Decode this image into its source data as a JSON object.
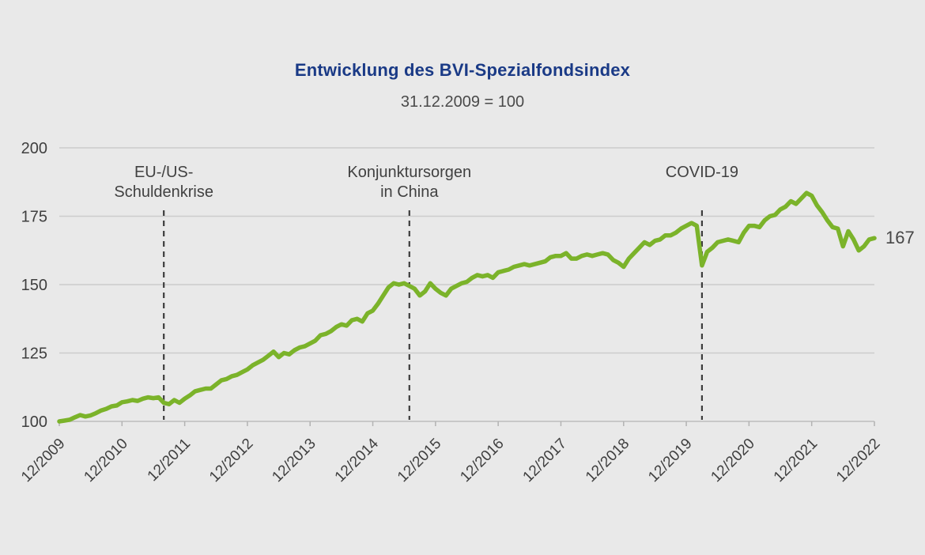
{
  "title": "Entwicklung des BVI-Spezialfondsindex",
  "subtitle": "31.12.2009 = 100",
  "annotations": [
    {
      "text_lines": [
        "EU-/US-",
        "Schuldenkrise"
      ],
      "event": "eu-us-debt-crisis",
      "month_index": 20
    },
    {
      "text_lines": [
        "Konjunktursorgen",
        "in China"
      ],
      "event": "china-economic-worries",
      "month_index": 67
    },
    {
      "text_lines": [
        "COVID-19"
      ],
      "event": "covid-19",
      "month_index": 123
    }
  ],
  "chart_data": {
    "type": "line",
    "title": "Entwicklung des BVI-Spezialfondsindex",
    "subtitle": "31.12.2009 = 100",
    "xlabel": "",
    "ylabel": "",
    "ylim": [
      100,
      200
    ],
    "y_ticks": [
      100,
      125,
      150,
      175,
      200
    ],
    "x_tick_labels": [
      "12/2009",
      "12/2010",
      "12/2011",
      "12/2012",
      "12/2013",
      "12/2014",
      "12/2015",
      "12/2016",
      "12/2017",
      "12/2018",
      "12/2019",
      "12/2020",
      "12/2021",
      "12/2022"
    ],
    "grid": "horizontal",
    "legend": "none",
    "end_label": "167",
    "series": [
      {
        "name": "BVI-Spezialfondsindex",
        "start": "12/2009",
        "frequency": "monthly",
        "values": [
          100.0,
          100.3,
          100.6,
          101.5,
          102.3,
          101.8,
          102.2,
          103.0,
          104.0,
          104.6,
          105.5,
          105.8,
          107.0,
          107.3,
          107.8,
          107.5,
          108.3,
          108.8,
          108.5,
          108.8,
          106.8,
          106.3,
          107.8,
          106.8,
          108.3,
          109.5,
          111.0,
          111.5,
          112.0,
          112.0,
          113.5,
          115.0,
          115.5,
          116.5,
          117.0,
          118.0,
          119.0,
          120.5,
          121.5,
          122.5,
          124.0,
          125.5,
          123.5,
          125.0,
          124.5,
          126.0,
          127.0,
          127.5,
          128.5,
          129.5,
          131.5,
          132.0,
          133.0,
          134.5,
          135.5,
          135.0,
          137.0,
          137.5,
          136.5,
          139.5,
          140.5,
          143.0,
          146.0,
          149.0,
          150.5,
          150.0,
          150.5,
          149.5,
          148.5,
          146.0,
          147.5,
          150.5,
          148.5,
          147.0,
          146.0,
          148.5,
          149.5,
          150.5,
          151.0,
          152.5,
          153.5,
          153.0,
          153.5,
          152.5,
          154.5,
          155.0,
          155.5,
          156.5,
          157.0,
          157.5,
          157.0,
          157.5,
          158.0,
          158.5,
          160.0,
          160.5,
          160.5,
          161.5,
          159.5,
          159.5,
          160.5,
          161.0,
          160.5,
          161.0,
          161.5,
          161.0,
          159.0,
          158.0,
          156.5,
          159.5,
          161.5,
          163.5,
          165.5,
          164.5,
          166.0,
          166.5,
          168.0,
          168.0,
          169.0,
          170.5,
          171.5,
          172.5,
          171.5,
          157.0,
          162.0,
          163.5,
          165.5,
          166.0,
          166.5,
          166.0,
          165.5,
          169.0,
          171.5,
          171.5,
          171.0,
          173.5,
          175.0,
          175.5,
          177.5,
          178.5,
          180.5,
          179.5,
          181.5,
          183.5,
          182.5,
          179.0,
          176.5,
          173.5,
          171.0,
          170.5,
          164.0,
          169.5,
          166.5,
          162.5,
          164.0,
          166.5,
          167.0
        ]
      }
    ],
    "colors": {
      "line": "#7bb32a",
      "title": "#1a3a86",
      "subtitle_text": "#4a4a4a",
      "axis_text": "#3f3f3f",
      "gridline": "#cccccc",
      "dashed_event_line": "#3d3d3d",
      "background": "#e9e9e9"
    }
  }
}
